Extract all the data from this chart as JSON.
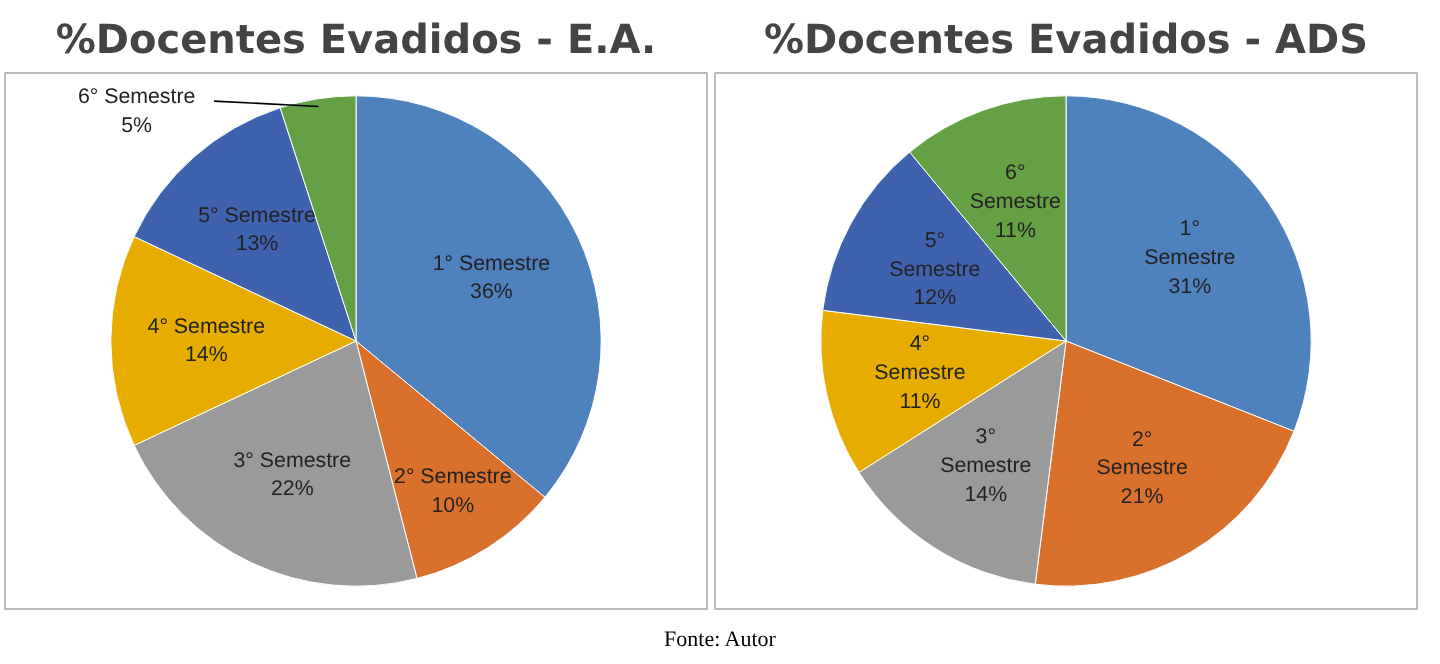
{
  "chart_data": [
    {
      "type": "pie",
      "title": "%Docentes Evadidos - E.A.",
      "categories": [
        "1° Semestre",
        "2° Semestre",
        "3° Semestre",
        "4° Semestre",
        "5° Semestre",
        "6° Semestre"
      ],
      "values": [
        36,
        10,
        22,
        14,
        13,
        5
      ],
      "colors": [
        "#4f81bd",
        "#d9702c",
        "#9a9a9a",
        "#e6ad00",
        "#3e62ae",
        "#64a044"
      ],
      "value_labels": [
        "36%",
        "10%",
        "22%",
        "14%",
        "13%",
        "5%"
      ]
    },
    {
      "type": "pie",
      "title": "%Docentes Evadidos - ADS",
      "categories": [
        "1° Semestre",
        "2° Semestre",
        "3° Semestre",
        "4° Semestre",
        "5° Semestre",
        "6° Semestre"
      ],
      "values": [
        31,
        21,
        14,
        11,
        12,
        11
      ],
      "colors": [
        "#4f81bd",
        "#d9702c",
        "#9a9a9a",
        "#e6ad00",
        "#3e62ae",
        "#64a044"
      ],
      "value_labels": [
        "31%",
        "21%",
        "14%",
        "11%",
        "12%",
        "11%"
      ],
      "annotations": [
        "Fonte: Autor"
      ]
    }
  ]
}
